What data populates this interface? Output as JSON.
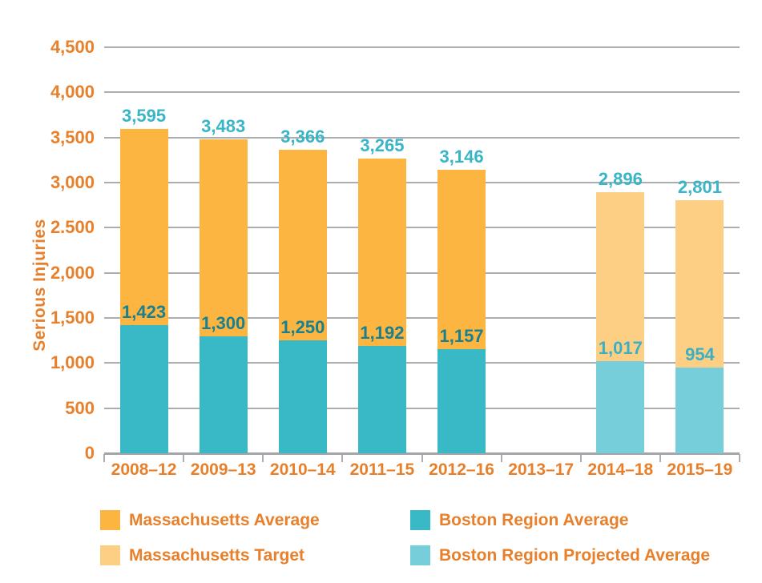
{
  "chart_data": {
    "type": "bar",
    "stacked": true,
    "title": "",
    "xlabel": "",
    "ylabel": "Serious Injuries",
    "ylim": [
      0,
      4500
    ],
    "grid": true,
    "legend_position": "bottom",
    "y_ticks": [
      {
        "value": 4500,
        "label": "4,500"
      },
      {
        "value": 4000,
        "label": "4,000"
      },
      {
        "value": 3500,
        "label": "3,500"
      },
      {
        "value": 3000,
        "label": "3,000"
      },
      {
        "value": 2500,
        "label": "2.500"
      },
      {
        "value": 2000,
        "label": "2,000"
      },
      {
        "value": 1500,
        "label": "1,500"
      },
      {
        "value": 1000,
        "label": "1,000"
      },
      {
        "value": 500,
        "label": "500"
      },
      {
        "value": 0,
        "label": "0"
      }
    ],
    "categories": [
      "2008–12",
      "2009–13",
      "2010–14",
      "2011–15",
      "2012–16",
      "2013–17",
      "2014–18",
      "2015–19"
    ],
    "bars": [
      {
        "category": "2008–12",
        "series_type": "actual",
        "massachusetts_total": 3595,
        "massachusetts_label": "3,595",
        "boston": 1423,
        "boston_label": "1,423"
      },
      {
        "category": "2009–13",
        "series_type": "actual",
        "massachusetts_total": 3483,
        "massachusetts_label": "3,483",
        "boston": 1300,
        "boston_label": "1,300"
      },
      {
        "category": "2010–14",
        "series_type": "actual",
        "massachusetts_total": 3366,
        "massachusetts_label": "3,366",
        "boston": 1250,
        "boston_label": "1,250"
      },
      {
        "category": "2011–15",
        "series_type": "actual",
        "massachusetts_total": 3265,
        "massachusetts_label": "3,265",
        "boston": 1192,
        "boston_label": "1,192"
      },
      {
        "category": "2012–16",
        "series_type": "actual",
        "massachusetts_total": 3146,
        "massachusetts_label": "3,146",
        "boston": 1157,
        "boston_label": "1,157"
      },
      {
        "category": "2013–17",
        "series_type": "none",
        "massachusetts_total": null,
        "massachusetts_label": "",
        "boston": null,
        "boston_label": ""
      },
      {
        "category": "2014–18",
        "series_type": "projected",
        "massachusetts_total": 2896,
        "massachusetts_label": "2,896",
        "boston": 1017,
        "boston_label": "1,017"
      },
      {
        "category": "2015–19",
        "series_type": "projected",
        "massachusetts_total": 2801,
        "massachusetts_label": "2,801",
        "boston": 954,
        "boston_label": "954"
      }
    ],
    "series": [
      {
        "name": "Massachusetts Average",
        "values": [
          3595,
          3483,
          3366,
          3265,
          3146,
          null,
          null,
          null
        ]
      },
      {
        "name": "Boston Region Average",
        "values": [
          1423,
          1300,
          1250,
          1192,
          1157,
          null,
          null,
          null
        ]
      },
      {
        "name": "Massachusetts Target",
        "values": [
          null,
          null,
          null,
          null,
          null,
          null,
          2896,
          2801
        ]
      },
      {
        "name": "Boston Region Projected Average",
        "values": [
          null,
          null,
          null,
          null,
          null,
          null,
          1017,
          954
        ]
      }
    ]
  },
  "legend": {
    "items": [
      {
        "label": "Massachusetts Average",
        "color": "#FBB540",
        "column": "left",
        "row": 0
      },
      {
        "label": "Boston Region Average",
        "color": "#39B8C6",
        "column": "right",
        "row": 0
      },
      {
        "label": "Massachusetts Target",
        "color": "#FCCF85",
        "column": "left",
        "row": 1
      },
      {
        "label": "Boston Region Projected Average",
        "color": "#76CEDA",
        "column": "right",
        "row": 1
      }
    ]
  },
  "colors": {
    "massachusetts_average": "#FBB540",
    "boston_region_average": "#39B8C6",
    "massachusetts_target": "#FCCF85",
    "boston_region_projected_average": "#76CEDA",
    "axis_text": "#E8802B",
    "gridline": "#ABADB0",
    "axis_line": "#A3A5A8",
    "total_label": "#39B5C7",
    "boston_label_actual": "#19808F",
    "boston_label_projected": "#3BB0C4"
  }
}
